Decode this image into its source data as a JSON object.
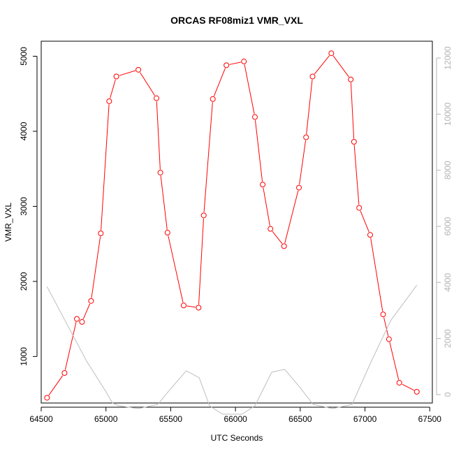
{
  "chart_data": {
    "type": "line",
    "title": "ORCAS RF08miz1 VMR_VXL",
    "xlabel": "UTC Seconds",
    "ylabel": "VMR_VXL",
    "y2label": "",
    "xlim": [
      64500,
      67520
    ],
    "ylim": [
      380,
      5200
    ],
    "y2lim": [
      -300,
      12600
    ],
    "x_ticks": [
      64500,
      65000,
      65500,
      66000,
      66500,
      67000,
      67500
    ],
    "y_ticks": [
      1000,
      2000,
      3000,
      4000,
      5000
    ],
    "y2_ticks": [
      0,
      2000,
      4000,
      6000,
      8000,
      10000,
      12000
    ],
    "grid": false,
    "legend": "none",
    "colors": {
      "vmr": "#ff0000",
      "secondary": "#bebebe",
      "axis": "#000000",
      "axis_right": "#b3b3b3"
    },
    "series": [
      {
        "axis": "left",
        "style": "line-with-open-circles",
        "x": [
          64545,
          64680,
          64775,
          64815,
          64885,
          64960,
          65025,
          65080,
          65250,
          65390,
          65420,
          65475,
          65600,
          65715,
          65755,
          65825,
          65930,
          66065,
          66150,
          66210,
          66270,
          66375,
          66490,
          66545,
          66595,
          66740,
          66890,
          66915,
          66955,
          67040,
          67140,
          67185,
          67265,
          67400
        ],
        "y": [
          450,
          780,
          1500,
          1460,
          1740,
          2640,
          4400,
          4730,
          4820,
          4440,
          3450,
          2650,
          1680,
          1650,
          2880,
          4430,
          4880,
          4930,
          4190,
          3290,
          2700,
          2470,
          3250,
          3920,
          4730,
          5040,
          4690,
          3860,
          2980,
          2620,
          1560,
          1230,
          650,
          530
        ]
      },
      {
        "axis": "right",
        "style": "line",
        "x": [
          64545,
          64700,
          64850,
          65000,
          65050,
          65100,
          65250,
          65400,
          65480,
          65620,
          65720,
          65800,
          65900,
          66050,
          66150,
          66280,
          66380,
          66490,
          66600,
          66750,
          66900,
          67050,
          67200,
          67400
        ],
        "y": [
          3850,
          2500,
          1200,
          100,
          -300,
          -400,
          -500,
          -350,
          100,
          850,
          600,
          -400,
          -700,
          -700,
          -400,
          800,
          900,
          300,
          -350,
          -500,
          -350,
          1200,
          2650,
          3900
        ]
      }
    ]
  }
}
